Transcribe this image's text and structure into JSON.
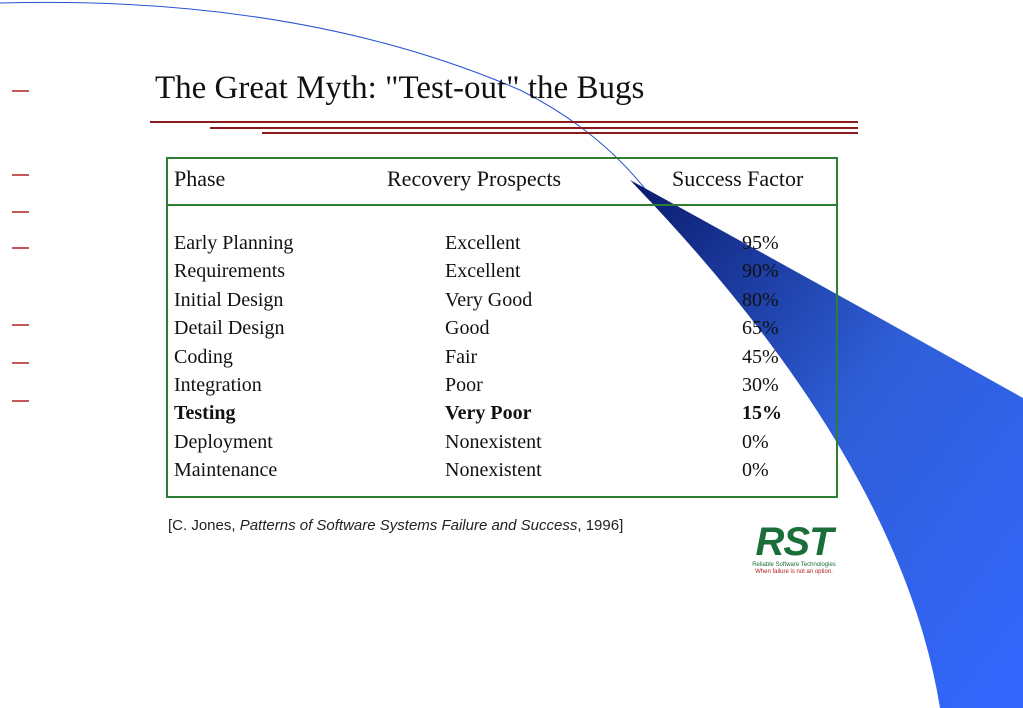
{
  "title": "The Great Myth: \"Test-out\" the Bugs",
  "table": {
    "headers": [
      "Phase",
      "Recovery Prospects",
      "Success Factor"
    ],
    "rows": [
      [
        "Early Planning",
        "Excellent",
        "95%"
      ],
      [
        "Requirements",
        "Excellent",
        "90%"
      ],
      [
        "Initial Design",
        "Very Good",
        "80%"
      ],
      [
        "Detail Design",
        "Good",
        "65%"
      ],
      [
        "Coding",
        "Fair",
        "45%"
      ],
      [
        "Integration",
        "Poor",
        "30%"
      ],
      [
        "Testing",
        "Very Poor",
        "15%"
      ],
      [
        "Deployment",
        "Nonexistent",
        "0%"
      ],
      [
        "Maintenance",
        "Nonexistent",
        "0%"
      ]
    ]
  },
  "citation": {
    "before": "[C. Jones, ",
    "work": "Patterns of Software Systems Failure and Success",
    "after": ", 1996]"
  },
  "logo": {
    "mark": "RST",
    "name": "Reliable Software Technologies",
    "tagline": "When failure is not an option."
  }
}
